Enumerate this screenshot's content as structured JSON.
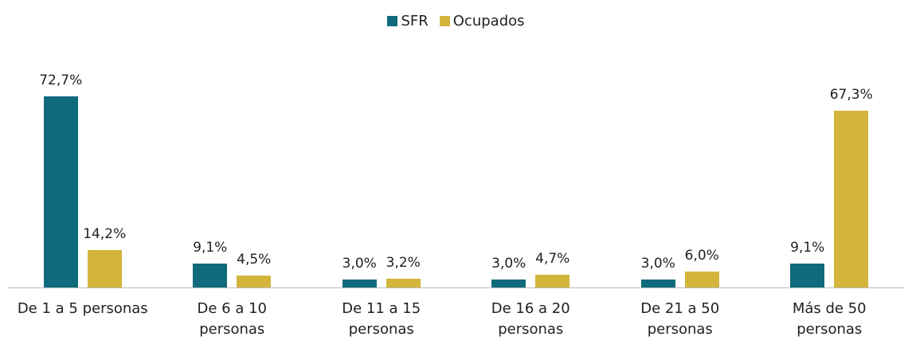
{
  "chart_data": {
    "type": "bar",
    "categories": [
      "De 1 a 5 personas",
      "De 6 a 10\npersonas",
      "De 11 a 15\npersonas",
      "De 16 a 20\npersonas",
      "De 21 a 50\npersonas",
      "Más de 50\npersonas"
    ],
    "series": [
      {
        "name": "SFR",
        "color": "#0f6b7b",
        "values": [
          72.7,
          9.1,
          3.0,
          3.0,
          3.0,
          9.1
        ],
        "value_labels": [
          "72,7%",
          "9,1%",
          "3,0%",
          "3,0%",
          "3,0%",
          "9,1%"
        ]
      },
      {
        "name": "Ocupados",
        "color": "#d4b53c",
        "values": [
          14.2,
          4.5,
          3.2,
          4.7,
          6.0,
          67.3
        ],
        "value_labels": [
          "14,2%",
          "4,5%",
          "3,2%",
          "4,7%",
          "6,0%",
          "67,3%"
        ]
      }
    ],
    "legend": "top"
  }
}
